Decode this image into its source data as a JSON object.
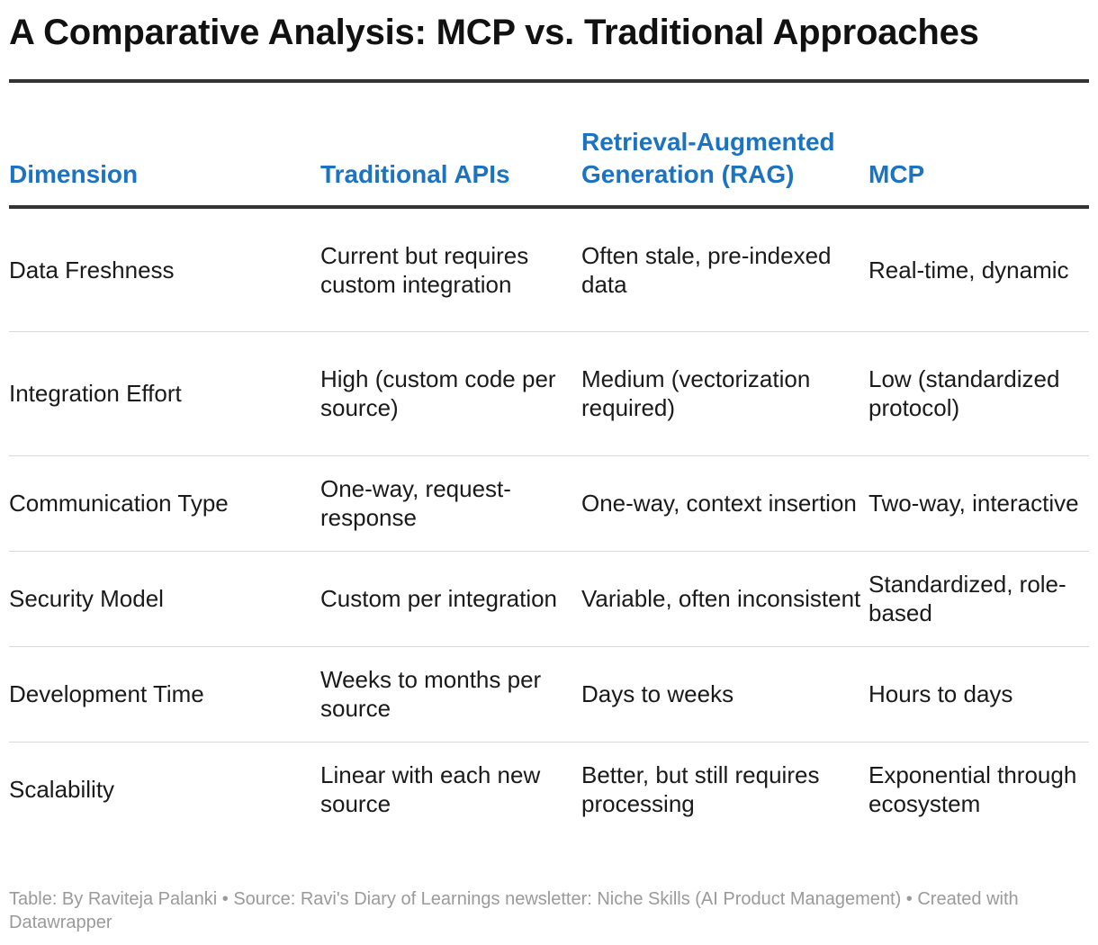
{
  "title": "A Comparative Analysis: MCP vs. Traditional Approaches",
  "chart_data": {
    "type": "table",
    "title": "A Comparative Analysis: MCP vs. Traditional Approaches",
    "columns": [
      "Dimension",
      "Traditional APIs",
      "Retrieval-Augmented Generation (RAG)",
      "MCP"
    ],
    "rows": [
      [
        "Data Freshness",
        "Current but requires custom integration",
        "Often stale, pre-indexed data",
        "Real-time, dynamic"
      ],
      [
        "Integration Effort",
        "High (custom code per source)",
        "Medium (vectorization required)",
        "Low (standardized protocol)"
      ],
      [
        "Communication Type",
        "One-way, request-response",
        "One-way, context insertion",
        "Two-way, interactive"
      ],
      [
        "Security Model",
        "Custom per integration",
        "Variable, often inconsistent",
        "Standardized, role-based"
      ],
      [
        "Development Time",
        "Weeks to months per source",
        "Days to weeks",
        "Hours to days"
      ],
      [
        "Scalability",
        "Linear with each new source",
        "Better, but still requires processing",
        "Exponential through ecosystem"
      ]
    ]
  },
  "footer": "Table: By Raviteja Palanki  • Source: Ravi's Diary of Learnings newsletter: Niche Skills (AI Product Management) • Created with Datawrapper",
  "colors": {
    "header_text": "#1b73c2",
    "rule": "#333333",
    "row_divider": "#d9d9d9",
    "footer_text": "#9a9a9a"
  }
}
